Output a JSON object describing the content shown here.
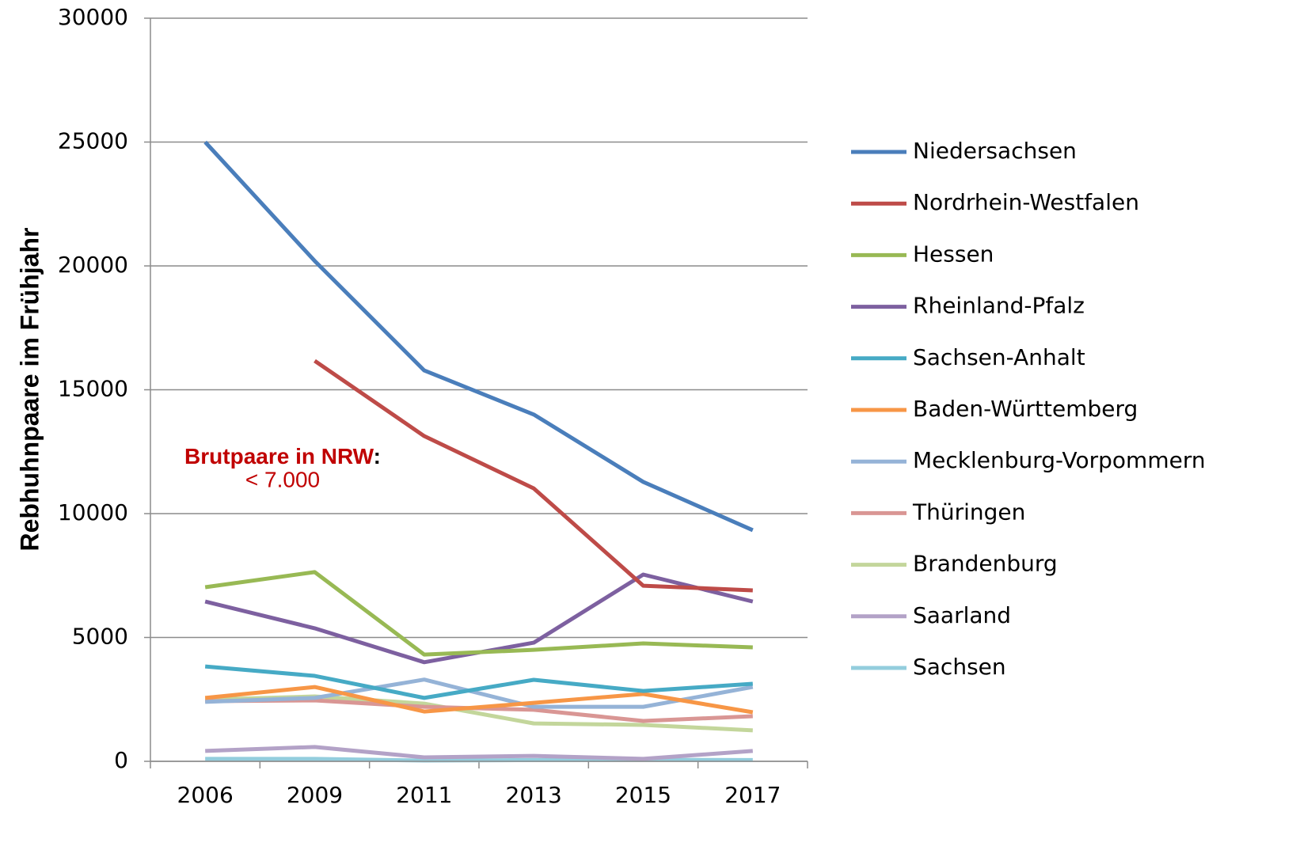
{
  "chart_data": {
    "type": "line",
    "ylabel": "Rebhuhnpaare im Frühjahr",
    "annotation": {
      "highlight": "Brutpaare in NRW",
      "colon": ":",
      "value": "< 7.000"
    },
    "categories": [
      "2006",
      "2009",
      "2011",
      "2013",
      "2015",
      "2017"
    ],
    "ylim": [
      0,
      30000
    ],
    "yticks": [
      0,
      5000,
      10000,
      15000,
      20000,
      25000,
      30000
    ],
    "grid": true,
    "series": [
      {
        "name": "Niedersachsen",
        "color": "#4a7ebb",
        "values": [
          25000,
          20200,
          15780,
          14000,
          11280,
          9330
        ]
      },
      {
        "name": "Nordrhein-Westfalen",
        "color": "#be4b48",
        "values": [
          null,
          16170,
          13130,
          11020,
          7090,
          6900
        ]
      },
      {
        "name": "Hessen",
        "color": "#98b954",
        "values": [
          7030,
          7640,
          4310,
          4500,
          4760,
          4600
        ]
      },
      {
        "name": "Rheinland-Pfalz",
        "color": "#7d60a0",
        "values": [
          6450,
          5370,
          4000,
          4790,
          7540,
          6450
        ]
      },
      {
        "name": "Sachsen-Anhalt",
        "color": "#46aac5",
        "values": [
          3830,
          3450,
          2560,
          3290,
          2840,
          3130
        ]
      },
      {
        "name": "Baden-Württemberg",
        "color": "#f79646",
        "values": [
          2560,
          3000,
          2010,
          2360,
          2720,
          1980
        ]
      },
      {
        "name": "Mecklenburg-Vorpommern",
        "color": "#95b3d7",
        "values": [
          2400,
          2560,
          3300,
          2200,
          2200,
          3000
        ]
      },
      {
        "name": "Thüringen",
        "color": "#d99694",
        "values": [
          2430,
          2460,
          2200,
          2080,
          1630,
          1820
        ]
      },
      {
        "name": "Brandenburg",
        "color": "#c3d69b",
        "values": [
          2490,
          2620,
          2330,
          1530,
          1470,
          1250
        ]
      },
      {
        "name": "Saarland",
        "color": "#b3a2c7",
        "values": [
          420,
          580,
          160,
          220,
          100,
          420
        ]
      },
      {
        "name": "Sachsen",
        "color": "#93cddd",
        "values": [
          100,
          100,
          30,
          50,
          60,
          50
        ]
      }
    ]
  }
}
